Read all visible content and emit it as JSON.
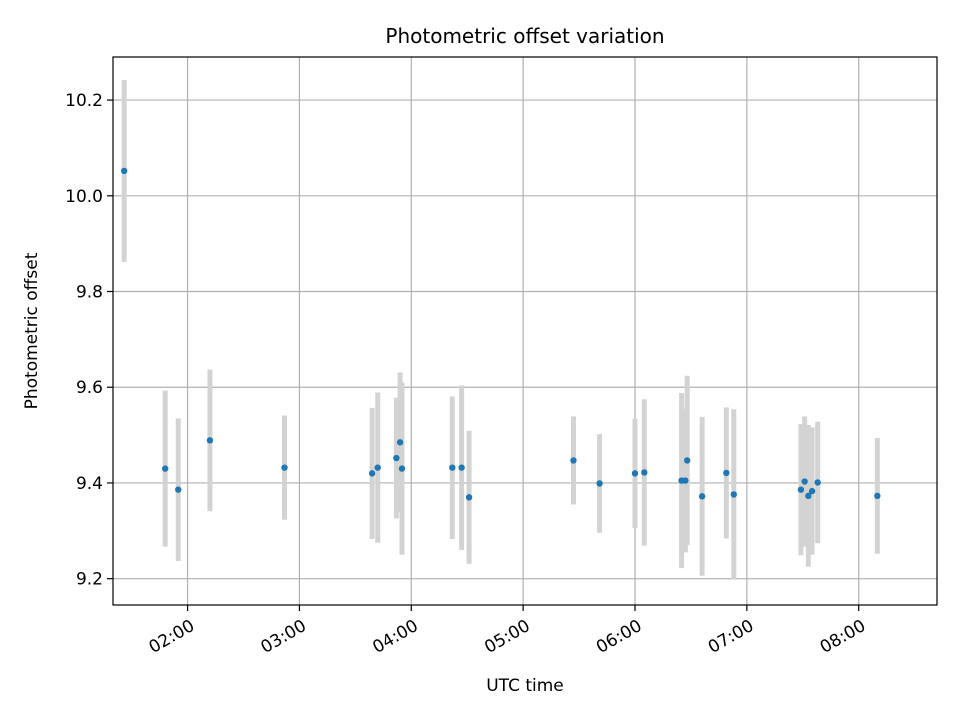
{
  "chart_data": {
    "type": "scatter",
    "title": "Photometric offset variation",
    "xlabel": "UTC time",
    "ylabel": "Photometric offset",
    "x_unit": "hours UTC",
    "xlim": [
      "01:20",
      "08:42"
    ],
    "ylim": [
      9.145,
      10.29
    ],
    "x_ticks": [
      "02:00",
      "03:00",
      "04:00",
      "05:00",
      "06:00",
      "07:00",
      "08:00"
    ],
    "y_ticks": [
      "9.2",
      "9.4",
      "9.6",
      "9.8",
      "10.0",
      "10.2"
    ],
    "grid": true,
    "legend": "none",
    "colors": {
      "point": "#1f77b4",
      "errorbar": "#d3d3d3",
      "grid": "#b0b0b0"
    },
    "points": [
      {
        "x": "01:26",
        "y": 10.052,
        "err": 0.19
      },
      {
        "x": "01:48",
        "y": 9.43,
        "err": 0.163
      },
      {
        "x": "01:55",
        "y": 9.386,
        "err": 0.149
      },
      {
        "x": "02:12",
        "y": 9.489,
        "err": 0.148
      },
      {
        "x": "02:52",
        "y": 9.432,
        "err": 0.109
      },
      {
        "x": "03:39",
        "y": 9.42,
        "err": 0.137
      },
      {
        "x": "03:42",
        "y": 9.432,
        "err": 0.157
      },
      {
        "x": "03:52",
        "y": 9.452,
        "err": 0.126
      },
      {
        "x": "03:54",
        "y": 9.485,
        "err": 0.146
      },
      {
        "x": "03:55",
        "y": 9.43,
        "err": 0.18
      },
      {
        "x": "04:22",
        "y": 9.432,
        "err": 0.149
      },
      {
        "x": "04:27",
        "y": 9.432,
        "err": 0.172
      },
      {
        "x": "04:31",
        "y": 9.37,
        "err": 0.139
      },
      {
        "x": "05:27",
        "y": 9.447,
        "err": 0.092
      },
      {
        "x": "05:41",
        "y": 9.399,
        "err": 0.103
      },
      {
        "x": "06:00",
        "y": 9.42,
        "err": 0.114
      },
      {
        "x": "06:05",
        "y": 9.422,
        "err": 0.153
      },
      {
        "x": "06:25",
        "y": 9.405,
        "err": 0.183
      },
      {
        "x": "06:27",
        "y": 9.405,
        "err": 0.15
      },
      {
        "x": "06:28",
        "y": 9.447,
        "err": 0.177
      },
      {
        "x": "06:36",
        "y": 9.372,
        "err": 0.166
      },
      {
        "x": "06:49",
        "y": 9.421,
        "err": 0.137
      },
      {
        "x": "06:53",
        "y": 9.376,
        "err": 0.178
      },
      {
        "x": "07:29",
        "y": 9.386,
        "err": 0.137
      },
      {
        "x": "07:31",
        "y": 9.403,
        "err": 0.136
      },
      {
        "x": "07:33",
        "y": 9.373,
        "err": 0.148
      },
      {
        "x": "07:35",
        "y": 9.383,
        "err": 0.133
      },
      {
        "x": "07:38",
        "y": 9.401,
        "err": 0.127
      },
      {
        "x": "08:10",
        "y": 9.373,
        "err": 0.121
      }
    ]
  }
}
